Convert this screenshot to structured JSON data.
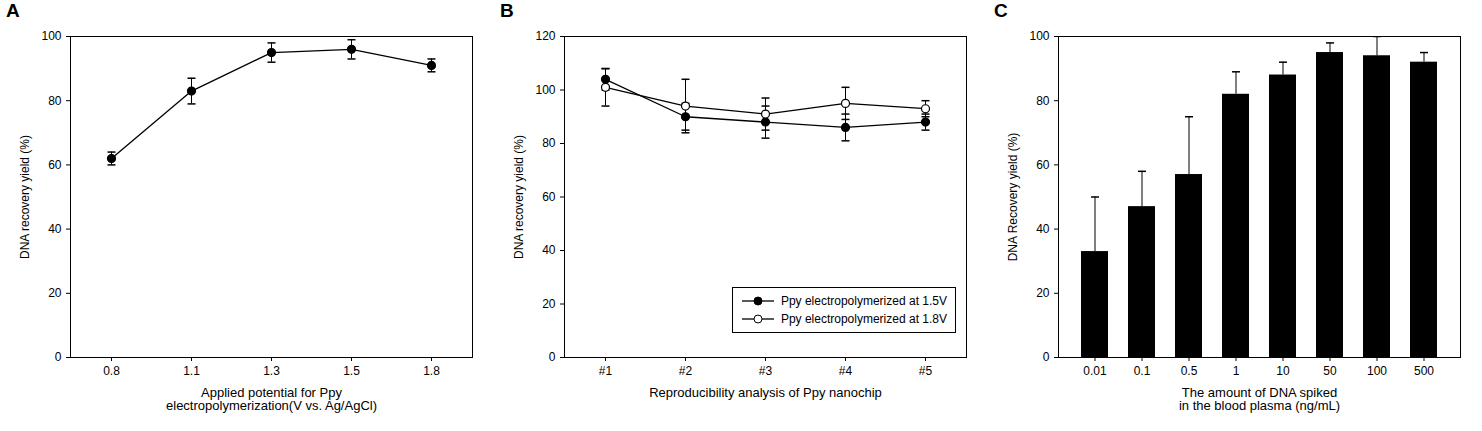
{
  "chart_data": [
    {
      "type": "line",
      "title": "A",
      "x_label": "Applied potential for Ppy\nelectropolymerization(V vs. Ag/AgCl)",
      "y_label": "DNA recovery yield (%)",
      "categories": [
        "0.8",
        "1.1",
        "1.3",
        "1.5",
        "1.8"
      ],
      "values": [
        62,
        83,
        95,
        96,
        91
      ],
      "errors": [
        2,
        4,
        3,
        3,
        2
      ],
      "color": "#000000",
      "marker": "filled circle",
      "ylim": [
        0,
        100
      ],
      "yticks": [
        0,
        20,
        40,
        60,
        80,
        100
      ]
    },
    {
      "type": "line",
      "title": "B",
      "x_label": "Reproducibility analysis of Ppy nanochip",
      "y_label": "DNA recovery yield (%)",
      "categories": [
        "#1",
        "#2",
        "#3",
        "#4",
        "#5"
      ],
      "series": [
        {
          "name": "Ppy electropolymerized at 1.5V",
          "color": "#000000",
          "marker": "filled circle",
          "values": [
            104,
            90,
            88,
            86,
            88
          ],
          "errors": [
            4,
            5,
            6,
            5,
            3
          ]
        },
        {
          "name": "Ppy electropolymerized at 1.8V",
          "color": "#000000",
          "marker": "open circle",
          "values": [
            101,
            94,
            91,
            95,
            93
          ],
          "errors": [
            7,
            10,
            6,
            6,
            3
          ]
        }
      ],
      "legend": "lower right",
      "ylim": [
        0,
        120
      ],
      "yticks": [
        0,
        20,
        40,
        60,
        80,
        100,
        120
      ]
    },
    {
      "type": "bar",
      "title": "C",
      "x_label": "The amount of DNA spiked\nin the blood plasma (ng/mL)",
      "y_label": "DNA Recovery yield (%)",
      "categories": [
        "0.01",
        "0.1",
        "0.5",
        "1",
        "10",
        "50",
        "100",
        "500"
      ],
      "values": [
        33,
        47,
        57,
        82,
        88,
        95,
        94,
        92
      ],
      "errors": [
        17,
        11,
        18,
        7,
        4,
        3,
        6,
        3
      ],
      "color": "#000000",
      "ylim": [
        0,
        100
      ],
      "yticks": [
        0,
        20,
        40,
        60,
        80,
        100
      ]
    }
  ]
}
